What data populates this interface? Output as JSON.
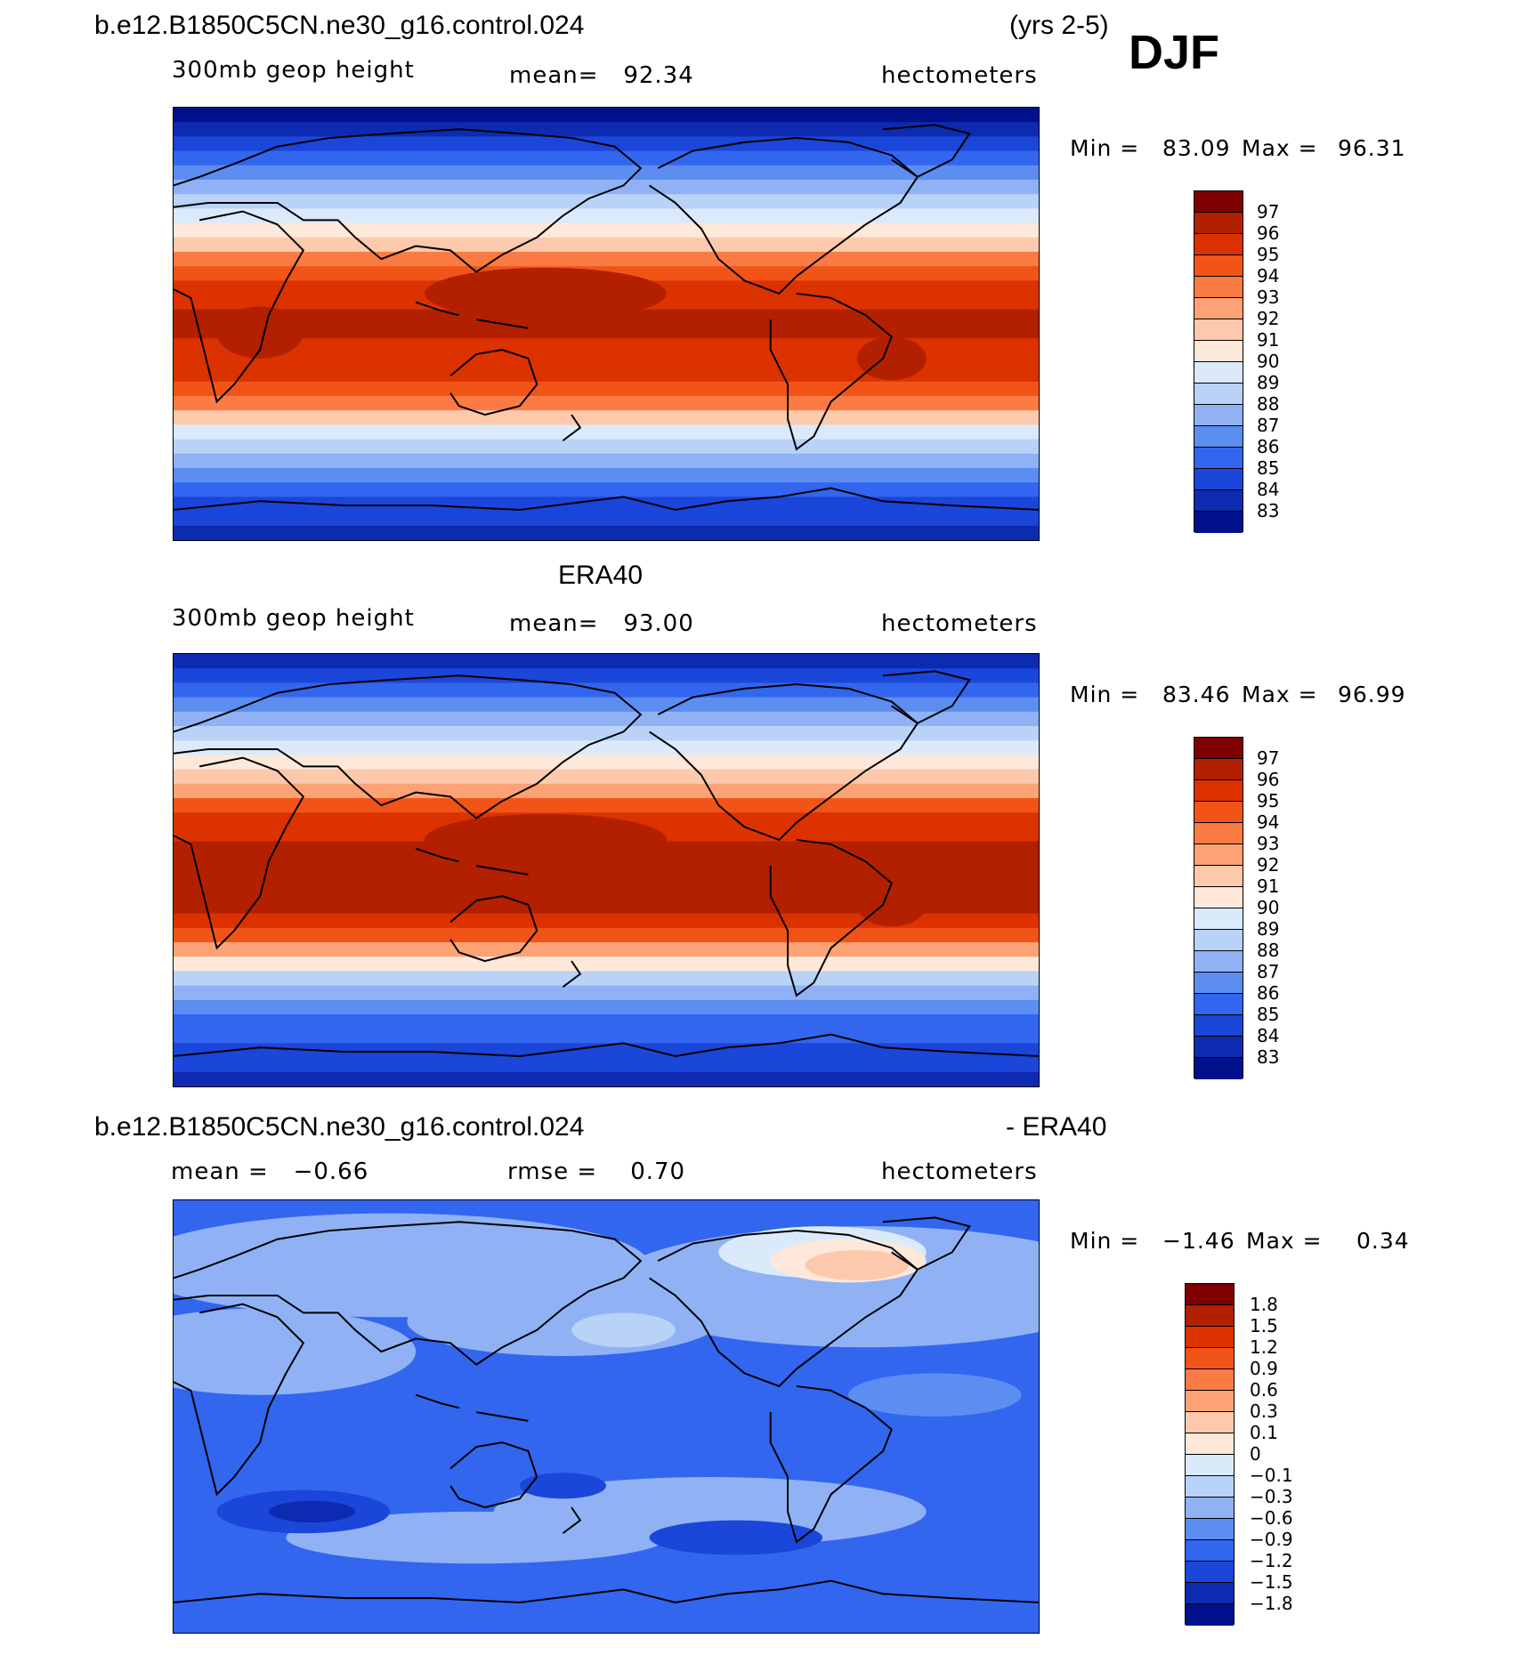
{
  "header": {
    "case_name": "b.e12.B1850C5CN.ne30_g16.control.024",
    "years": "(yrs 2-5)",
    "season": "DJF"
  },
  "panels": [
    {
      "id": "model",
      "title": "",
      "field": "300mb geop height",
      "stat1": "mean=   92.34",
      "stat2": "",
      "units": "hectometers",
      "min_label": "Min =",
      "min_value": "83.09",
      "max_label": "Max =",
      "max_value": "96.31",
      "colorbar_labels": [
        "97",
        "96",
        "95",
        "94",
        "93",
        "92",
        "91",
        "90",
        "89",
        "88",
        "87",
        "86",
        "85",
        "84",
        "83"
      ]
    },
    {
      "id": "obs",
      "title": "ERA40",
      "field": "300mb geop height",
      "stat1": "mean=   93.00",
      "stat2": "",
      "units": "hectometers",
      "min_label": "Min =",
      "min_value": "83.46",
      "max_label": "Max =",
      "max_value": "96.99",
      "colorbar_labels": [
        "97",
        "96",
        "95",
        "94",
        "93",
        "92",
        "91",
        "90",
        "89",
        "88",
        "87",
        "86",
        "85",
        "84",
        "83"
      ]
    },
    {
      "id": "diff",
      "title": "",
      "field": "",
      "stat1": "mean =   −0.66",
      "stat2": "rmse =    0.70",
      "units": "hectometers",
      "min_label": "Min =",
      "min_value": "−1.46",
      "max_label": "Max =",
      "max_value": "0.34",
      "colorbar_labels": [
        "1.8",
        "1.5",
        "1.2",
        "0.9",
        "0.6",
        "0.3",
        "0.1",
        "0",
        "−0.1",
        "−0.3",
        "−0.6",
        "−0.9",
        "−1.2",
        "−1.5",
        "−1.8"
      ]
    }
  ],
  "diff_header": {
    "case_name": "b.e12.B1850C5CN.ne30_g16.control.024",
    "minus_ref": "- ERA40"
  },
  "colors": {
    "scale": [
      "#7e0000",
      "#b22000",
      "#dc3200",
      "#f25418",
      "#fb7b44",
      "#fca274",
      "#fdc9ac",
      "#fde8da",
      "#dbeafa",
      "#b9d2f8",
      "#90b2f5",
      "#5c8ef2",
      "#3366ee",
      "#1a46d9",
      "#0d2bb0",
      "#00108a"
    ]
  }
}
